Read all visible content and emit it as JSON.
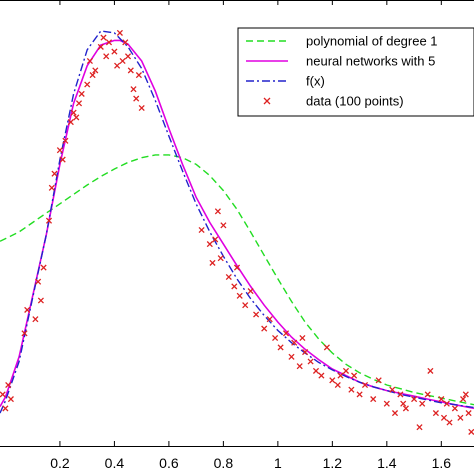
{
  "chart_data": {
    "type": "line",
    "xlim": [
      -0.02,
      1.72
    ],
    "ylim": [
      -0.2,
      4.55
    ],
    "xticks": [
      0.2,
      0.4,
      0.6,
      0.8,
      1,
      1.2,
      1.4,
      1.6
    ],
    "xtick_labels": [
      "0.2",
      "0.4",
      "0.6",
      "0.8",
      "1",
      "1.2",
      "1.4",
      "1.6"
    ],
    "grid": false,
    "legend_position": "top-right",
    "legend": [
      "polynomial of degree 1",
      "neural networks with 5",
      "f(x)",
      "data (100 points)"
    ],
    "series": [
      {
        "name": "polynomial of degree 1",
        "style": "dashed",
        "color": "#22dd22",
        "x": [
          -0.02,
          0.05,
          0.1,
          0.15,
          0.2,
          0.25,
          0.3,
          0.35,
          0.4,
          0.45,
          0.5,
          0.55,
          0.6,
          0.65,
          0.7,
          0.75,
          0.8,
          0.85,
          0.9,
          0.95,
          1.0,
          1.05,
          1.1,
          1.15,
          1.2,
          1.25,
          1.3,
          1.35,
          1.4,
          1.45,
          1.5,
          1.55,
          1.6,
          1.65,
          1.72
        ],
        "y": [
          1.98,
          2.08,
          2.18,
          2.28,
          2.38,
          2.48,
          2.58,
          2.67,
          2.75,
          2.82,
          2.87,
          2.9,
          2.9,
          2.87,
          2.8,
          2.68,
          2.52,
          2.32,
          2.08,
          1.83,
          1.58,
          1.34,
          1.12,
          0.94,
          0.79,
          0.67,
          0.58,
          0.51,
          0.45,
          0.41,
          0.37,
          0.34,
          0.31,
          0.28,
          0.24
        ]
      },
      {
        "name": "neural networks with 5",
        "style": "solid",
        "color": "#e000e0",
        "x": [
          -0.02,
          0.0,
          0.05,
          0.1,
          0.15,
          0.2,
          0.25,
          0.3,
          0.35,
          0.4,
          0.42,
          0.45,
          0.5,
          0.55,
          0.6,
          0.65,
          0.7,
          0.75,
          0.8,
          0.85,
          0.9,
          0.95,
          1.0,
          1.05,
          1.1,
          1.15,
          1.2,
          1.25,
          1.3,
          1.35,
          1.4,
          1.45,
          1.5,
          1.55,
          1.6,
          1.65,
          1.72
        ],
        "y": [
          0.22,
          0.32,
          0.75,
          1.4,
          2.05,
          2.8,
          3.45,
          3.85,
          4.07,
          4.12,
          4.12,
          4.08,
          3.9,
          3.58,
          3.18,
          2.8,
          2.45,
          2.18,
          1.95,
          1.72,
          1.5,
          1.3,
          1.12,
          0.96,
          0.83,
          0.72,
          0.62,
          0.55,
          0.48,
          0.43,
          0.39,
          0.36,
          0.33,
          0.3,
          0.27,
          0.24,
          0.2
        ]
      },
      {
        "name": "f(x)",
        "style": "dashdot",
        "color": "#2222cc",
        "x": [
          -0.02,
          0.0,
          0.05,
          0.1,
          0.15,
          0.2,
          0.25,
          0.3,
          0.35,
          0.4,
          0.45,
          0.5,
          0.55,
          0.6,
          0.65,
          0.7,
          0.75,
          0.8,
          0.85,
          0.9,
          0.95,
          1.0,
          1.05,
          1.1,
          1.15,
          1.2,
          1.25,
          1.3,
          1.35,
          1.4,
          1.45,
          1.5,
          1.55,
          1.6,
          1.65,
          1.72
        ],
        "y": [
          0.15,
          0.28,
          0.7,
          1.38,
          2.05,
          2.85,
          3.55,
          4.02,
          4.22,
          4.2,
          4.05,
          3.82,
          3.48,
          3.1,
          2.73,
          2.38,
          2.08,
          1.82,
          1.58,
          1.37,
          1.19,
          1.03,
          0.9,
          0.79,
          0.69,
          0.61,
          0.54,
          0.48,
          0.43,
          0.39,
          0.35,
          0.32,
          0.29,
          0.26,
          0.24,
          0.21
        ]
      }
    ],
    "scatter": {
      "name": "data (100 points)",
      "color": "#dd2222",
      "x": [
        -0.01,
        0.0,
        0.01,
        0.02,
        0.07,
        0.08,
        0.11,
        0.12,
        0.13,
        0.14,
        0.17,
        0.18,
        0.2,
        0.22,
        0.24,
        0.25,
        0.27,
        0.28,
        0.3,
        0.31,
        0.33,
        0.35,
        0.36,
        0.37,
        0.38,
        0.4,
        0.41,
        0.42,
        0.43,
        0.44,
        0.45,
        0.46,
        0.47,
        0.48,
        0.49,
        0.5,
        0.72,
        0.75,
        0.76,
        0.77,
        0.78,
        0.79,
        0.8,
        0.82,
        0.84,
        0.85,
        0.86,
        0.88,
        0.9,
        0.92,
        0.95,
        0.97,
        0.99,
        1.01,
        1.03,
        1.05,
        1.06,
        1.08,
        1.1,
        1.12,
        1.14,
        1.16,
        1.18,
        1.2,
        1.22,
        1.25,
        1.27,
        1.28,
        1.3,
        1.32,
        1.35,
        1.37,
        1.4,
        1.42,
        1.43,
        1.45,
        1.47,
        1.5,
        1.52,
        1.53,
        1.55,
        1.56,
        1.58,
        1.6,
        1.61,
        1.62,
        1.63,
        1.65,
        1.67,
        1.68,
        1.7,
        1.71,
        0.16,
        0.21,
        0.26,
        0.32,
        1.09,
        1.23,
        1.46,
        1.69
      ],
      "y": [
        0.35,
        0.2,
        0.45,
        0.3,
        1.0,
        1.25,
        1.15,
        1.55,
        1.35,
        1.7,
        2.55,
        2.7,
        2.95,
        3.05,
        3.25,
        3.35,
        3.45,
        3.55,
        3.65,
        3.9,
        3.8,
        4.05,
        4.15,
        3.95,
        4.1,
        4.0,
        3.85,
        4.2,
        3.9,
        4.1,
        3.95,
        3.8,
        3.6,
        3.5,
        3.75,
        3.4,
        2.1,
        1.95,
        1.75,
        2.0,
        2.3,
        1.8,
        2.15,
        1.6,
        1.5,
        1.7,
        1.4,
        1.3,
        1.45,
        1.2,
        1.05,
        1.15,
        0.95,
        0.85,
        1.0,
        0.75,
        0.9,
        0.65,
        0.8,
        0.7,
        0.6,
        0.55,
        0.85,
        0.5,
        0.45,
        0.6,
        0.4,
        0.55,
        0.35,
        0.45,
        0.3,
        0.5,
        0.25,
        0.4,
        0.15,
        0.35,
        0.2,
        0.3,
        0.0,
        0.25,
        0.35,
        0.6,
        0.15,
        0.3,
        0.1,
        0.25,
        0.05,
        0.2,
        0.1,
        0.3,
        0.15,
        -0.05,
        2.2,
        2.85,
        3.3,
        3.75,
        0.95,
        0.55,
        0.25,
        0.35
      ]
    }
  }
}
